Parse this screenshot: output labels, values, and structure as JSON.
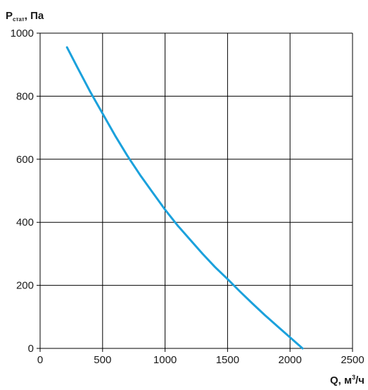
{
  "chart_data": {
    "type": "line",
    "ylabel": {
      "main": "P",
      "sub": "стат",
      "unit": ", Па"
    },
    "xlabel": {
      "main": "Q, м",
      "sup": "3",
      "unit": "/ч"
    },
    "xlim": [
      0,
      2500
    ],
    "ylim": [
      0,
      1000
    ],
    "xticks": [
      0,
      500,
      1000,
      1500,
      2000,
      2500
    ],
    "yticks": [
      0,
      200,
      400,
      600,
      800,
      1000
    ],
    "grid": true,
    "colors": {
      "curve": "#1ba1dc",
      "grid": "#000000"
    },
    "series": [
      {
        "x": [
          215,
          300,
          400,
          500,
          600,
          700,
          800,
          900,
          1000,
          1100,
          1200,
          1300,
          1400,
          1500,
          1600,
          1700,
          1800,
          1900,
          2000,
          2100
        ],
        "y": [
          955,
          890,
          815,
          745,
          675,
          610,
          550,
          495,
          440,
          390,
          345,
          300,
          258,
          220,
          180,
          142,
          105,
          70,
          35,
          0
        ]
      }
    ]
  }
}
